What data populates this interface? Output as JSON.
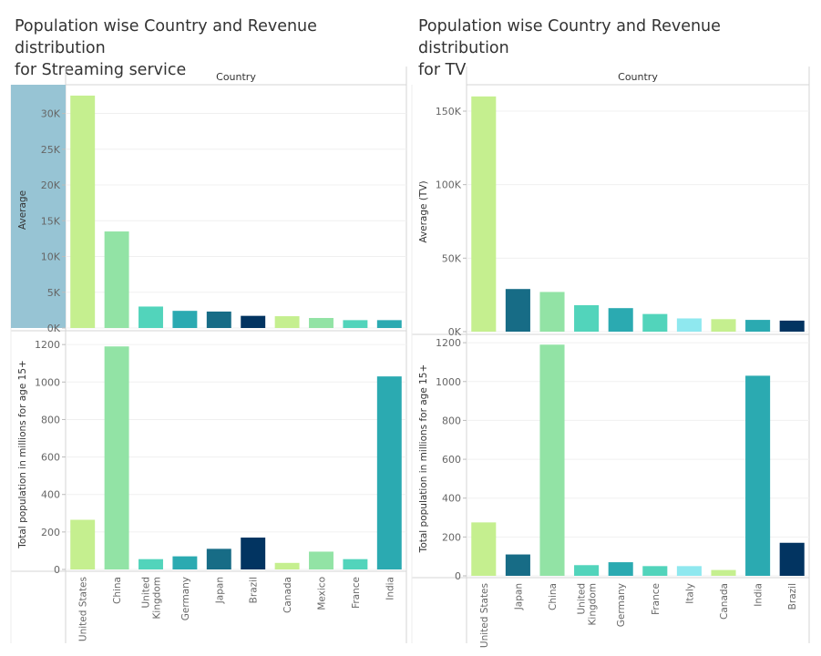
{
  "chart_data": [
    {
      "type": "bar",
      "title": "Population wise Country and Revenue distribution\nfor Streaming service",
      "header": "Country",
      "categories": [
        "United States",
        "China",
        "United\nKingdom",
        "Germany",
        "Japan",
        "Brazil",
        "Canada",
        "Mexico",
        "France",
        "India"
      ],
      "top": {
        "ylabel": "Average",
        "ylim": [
          0,
          33000
        ],
        "ticks": [
          0,
          5000,
          10000,
          15000,
          20000,
          25000,
          30000
        ],
        "tick_labels": [
          "0K",
          "5K",
          "10K",
          "15K",
          "20K",
          "25K",
          "30K"
        ],
        "values": [
          32500,
          13500,
          3000,
          2400,
          2300,
          1700,
          1650,
          1400,
          1100,
          1100
        ]
      },
      "bottom": {
        "ylabel": "Total population in millions for age 15+",
        "ylim": [
          0,
          1230
        ],
        "ticks": [
          0,
          200,
          400,
          600,
          800,
          1000,
          1200
        ],
        "tick_labels": [
          "0",
          "200",
          "400",
          "600",
          "800",
          "1000",
          "1200"
        ],
        "values": [
          265,
          1190,
          55,
          70,
          110,
          170,
          35,
          95,
          55,
          1030
        ]
      },
      "colors": [
        "#c5ef8f",
        "#92e3a5",
        "#52d4bb",
        "#2baab1",
        "#176c86",
        "#023461",
        "#c5ef8f",
        "#92e3a5",
        "#52d4bb",
        "#2baab1"
      ],
      "highlight_color": "#97c4d4"
    },
    {
      "type": "bar",
      "title": "Population wise Country and Revenue distribution\nfor TV",
      "header": "Country",
      "categories": [
        "United States",
        "Japan",
        "China",
        "United\nKingdom",
        "Germany",
        "France",
        "Italy",
        "Canada",
        "India",
        "Brazil"
      ],
      "top": {
        "ylabel": "Average (TV)",
        "ylim": [
          0,
          163000
        ],
        "ticks": [
          0,
          50000,
          100000,
          150000
        ],
        "tick_labels": [
          "0K",
          "50K",
          "100K",
          "150K"
        ],
        "values": [
          160000,
          29000,
          27000,
          18000,
          16000,
          12000,
          9000,
          8500,
          8000,
          7500
        ]
      },
      "bottom": {
        "ylabel": "Total population in millions for age 15+",
        "ylim": [
          0,
          1210
        ],
        "ticks": [
          0,
          200,
          400,
          600,
          800,
          1000,
          1200
        ],
        "tick_labels": [
          "0",
          "200",
          "400",
          "600",
          "800",
          "1000",
          "1200"
        ],
        "values": [
          275,
          110,
          1190,
          55,
          70,
          50,
          50,
          30,
          1030,
          170
        ]
      },
      "colors": [
        "#c5ef8f",
        "#176c86",
        "#92e3a5",
        "#52d4bb",
        "#2baab1",
        "#52d4bb",
        "#8fe8ef",
        "#c5ef8f",
        "#2baab1",
        "#023461"
      ]
    }
  ]
}
